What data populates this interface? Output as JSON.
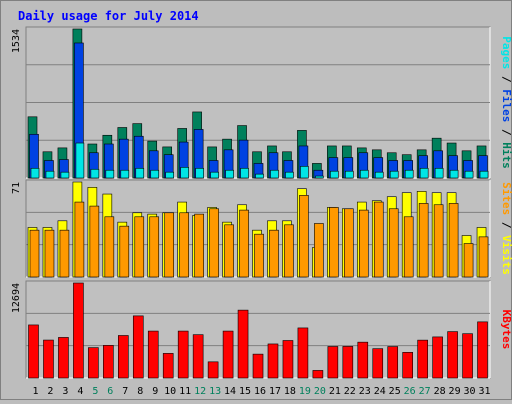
{
  "chart_data": [
    {
      "type": "bar",
      "title": "Daily usage for July 2014",
      "ylabel_top": "1534",
      "ylim": [
        0,
        1534
      ],
      "categories": [
        "1",
        "2",
        "3",
        "4",
        "5",
        "6",
        "7",
        "8",
        "9",
        "10",
        "11",
        "12",
        "13",
        "14",
        "15",
        "16",
        "17",
        "18",
        "19",
        "20",
        "21",
        "22",
        "23",
        "24",
        "25",
        "26",
        "27",
        "28",
        "29",
        "30",
        "31"
      ],
      "series": [
        {
          "name": "Hits",
          "color": "#00805c",
          "values": [
            630,
            270,
            310,
            1534,
            350,
            440,
            520,
            560,
            380,
            320,
            510,
            680,
            320,
            400,
            540,
            270,
            330,
            270,
            490,
            150,
            330,
            330,
            310,
            290,
            260,
            240,
            290,
            410,
            360,
            280,
            330
          ]
        },
        {
          "name": "Files",
          "color": "#0042e2",
          "values": [
            450,
            180,
            190,
            1390,
            260,
            350,
            400,
            430,
            280,
            240,
            370,
            500,
            180,
            290,
            390,
            150,
            260,
            180,
            330,
            80,
            210,
            210,
            260,
            210,
            180,
            180,
            230,
            280,
            230,
            180,
            230
          ]
        },
        {
          "name": "Pages",
          "color": "#00e6e6",
          "values": [
            100,
            70,
            60,
            360,
            90,
            80,
            80,
            100,
            80,
            60,
            110,
            100,
            60,
            80,
            100,
            40,
            80,
            60,
            120,
            20,
            70,
            70,
            80,
            60,
            70,
            80,
            100,
            100,
            80,
            70,
            70
          ]
        }
      ],
      "y_axis_label_parts": [
        "Pages",
        "Files",
        "Hits"
      ]
    },
    {
      "type": "bar",
      "ylabel_top": "71",
      "ylim": [
        0,
        71
      ],
      "categories": [
        "1",
        "2",
        "3",
        "4",
        "5",
        "6",
        "7",
        "8",
        "9",
        "10",
        "11",
        "12",
        "13",
        "14",
        "15",
        "16",
        "17",
        "18",
        "19",
        "20",
        "21",
        "22",
        "23",
        "24",
        "25",
        "26",
        "27",
        "28",
        "29",
        "30",
        "31"
      ],
      "series": [
        {
          "name": "Visits",
          "color": "#ffff00",
          "values": [
            37,
            37,
            42,
            71,
            67,
            62,
            41,
            48,
            47,
            48,
            56,
            46,
            52,
            41,
            54,
            35,
            42,
            42,
            66,
            22,
            52,
            51,
            56,
            57,
            60,
            63,
            64,
            63,
            63,
            31,
            37
          ]
        },
        {
          "name": "Sites",
          "color": "#ff9900",
          "values": [
            35,
            35,
            35,
            56,
            53,
            45,
            38,
            45,
            45,
            48,
            48,
            47,
            51,
            39,
            50,
            32,
            35,
            39,
            61,
            40,
            52,
            51,
            50,
            56,
            51,
            45,
            55,
            54,
            55,
            25,
            30
          ]
        }
      ],
      "y_axis_label_parts": [
        "Sites",
        "Visits"
      ]
    },
    {
      "type": "bar",
      "ylabel_top": "12694",
      "ylim": [
        0,
        12694
      ],
      "categories": [
        "1",
        "2",
        "3",
        "4",
        "5",
        "6",
        "7",
        "8",
        "9",
        "10",
        "11",
        "12",
        "13",
        "14",
        "15",
        "16",
        "17",
        "18",
        "19",
        "20",
        "21",
        "22",
        "23",
        "24",
        "25",
        "26",
        "27",
        "28",
        "29",
        "30",
        "31"
      ],
      "series": [
        {
          "name": "KBytes",
          "color": "#ff0000",
          "values": [
            7090,
            5070,
            5420,
            12694,
            4060,
            4360,
            5680,
            8300,
            6270,
            3290,
            6270,
            5790,
            2160,
            6270,
            9070,
            3190,
            4550,
            5010,
            6690,
            1010,
            4210,
            4220,
            4790,
            3920,
            4200,
            3430,
            5060,
            5490,
            6200,
            5920,
            7500
          ]
        }
      ],
      "y_axis_label_parts": [
        "KBytes"
      ]
    }
  ],
  "weekend_days": [
    "5",
    "6",
    "12",
    "13",
    "19",
    "20",
    "26",
    "27"
  ],
  "colors": {
    "background": "#bdbdbd",
    "plot_bg": "#c0c0c0",
    "title": "#0000ff",
    "axis_text": "#000000",
    "weekend": "#00805c",
    "weekday": "#000000",
    "kbytes_label": "#ff0000"
  }
}
